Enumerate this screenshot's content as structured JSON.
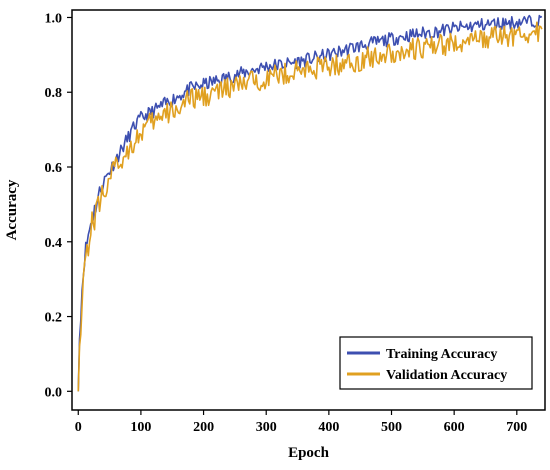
{
  "chart_data": {
    "type": "line",
    "title": "",
    "xlabel": "Epoch",
    "ylabel": "Accuracy",
    "xlim": [
      -10,
      745
    ],
    "ylim": [
      -0.05,
      1.02
    ],
    "xticks": [
      0,
      100,
      200,
      300,
      400,
      500,
      600,
      700
    ],
    "yticks": [
      0.0,
      0.2,
      0.4,
      0.6,
      0.8,
      1.0
    ],
    "xtick_labels": [
      "0",
      "100",
      "200",
      "300",
      "400",
      "500",
      "600",
      "700"
    ],
    "ytick_labels": [
      "0.0",
      "0.2",
      "0.4",
      "0.6",
      "0.8",
      "1.0"
    ],
    "grid": false,
    "legend_position": "bottom-right",
    "series": [
      {
        "name": "Training Accuracy",
        "color": "#3d4fb0",
        "x": [
          0,
          2,
          5,
          10,
          15,
          20,
          25,
          30,
          40,
          50,
          60,
          70,
          80,
          90,
          100,
          110,
          120,
          140,
          160,
          180,
          200,
          220,
          240,
          260,
          280,
          300,
          330,
          360,
          400,
          440,
          480,
          520,
          560,
          600,
          640,
          680,
          720,
          740
        ],
        "y": [
          0.0,
          0.14,
          0.25,
          0.36,
          0.41,
          0.45,
          0.48,
          0.51,
          0.56,
          0.59,
          0.62,
          0.65,
          0.68,
          0.71,
          0.73,
          0.74,
          0.75,
          0.77,
          0.79,
          0.81,
          0.82,
          0.83,
          0.84,
          0.85,
          0.86,
          0.87,
          0.875,
          0.885,
          0.9,
          0.92,
          0.935,
          0.95,
          0.96,
          0.97,
          0.98,
          0.985,
          0.99,
          0.995
        ]
      },
      {
        "name": "Validation Accuracy",
        "color": "#e0a020",
        "x": [
          0,
          2,
          5,
          10,
          15,
          20,
          25,
          30,
          40,
          50,
          60,
          70,
          80,
          90,
          100,
          110,
          120,
          140,
          160,
          180,
          200,
          220,
          240,
          260,
          280,
          300,
          330,
          360,
          400,
          440,
          480,
          520,
          560,
          600,
          640,
          680,
          720,
          740
        ],
        "y": [
          0.0,
          0.12,
          0.23,
          0.34,
          0.39,
          0.43,
          0.46,
          0.49,
          0.53,
          0.57,
          0.6,
          0.62,
          0.65,
          0.67,
          0.69,
          0.71,
          0.72,
          0.74,
          0.76,
          0.78,
          0.79,
          0.8,
          0.81,
          0.82,
          0.83,
          0.84,
          0.85,
          0.86,
          0.87,
          0.88,
          0.9,
          0.91,
          0.92,
          0.93,
          0.94,
          0.95,
          0.955,
          0.96
        ]
      }
    ]
  }
}
